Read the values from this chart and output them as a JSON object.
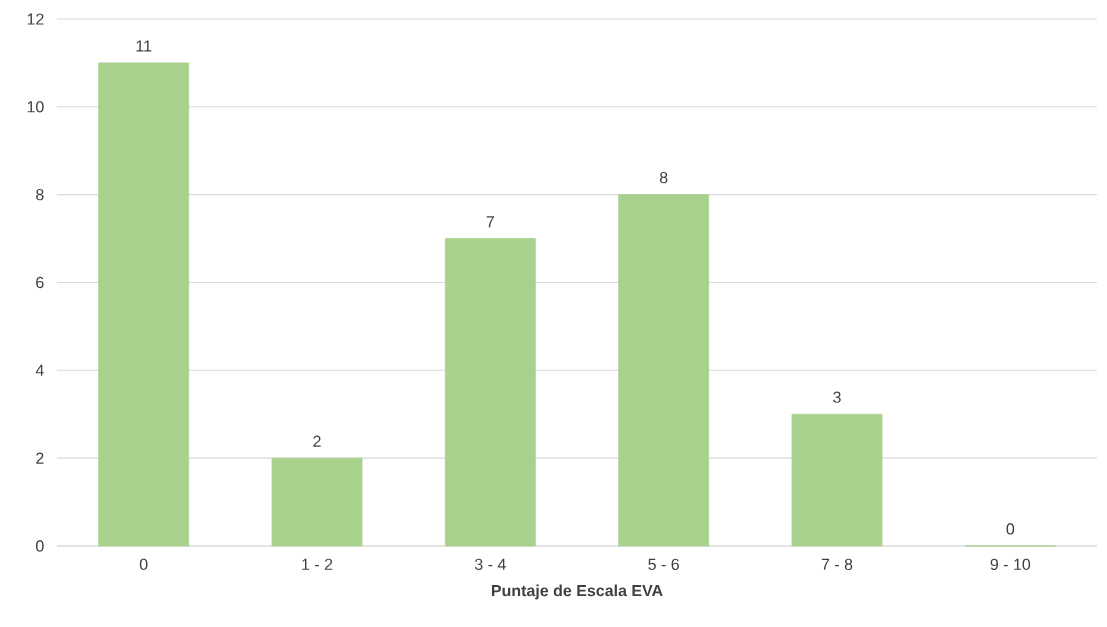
{
  "chart_data": {
    "type": "bar",
    "xlabel": "Puntaje de Escala EVA",
    "categories": [
      "0",
      "1 - 2",
      "3 - 4",
      "5 - 6",
      "7 - 8",
      "9 - 10"
    ],
    "values": [
      11,
      2,
      7,
      8,
      3,
      0
    ],
    "color": "#a9d18e",
    "ylim": [
      0,
      12
    ],
    "yticks": [
      0,
      2,
      4,
      6,
      8,
      10,
      12
    ],
    "grid": "y",
    "data_labels": true
  }
}
